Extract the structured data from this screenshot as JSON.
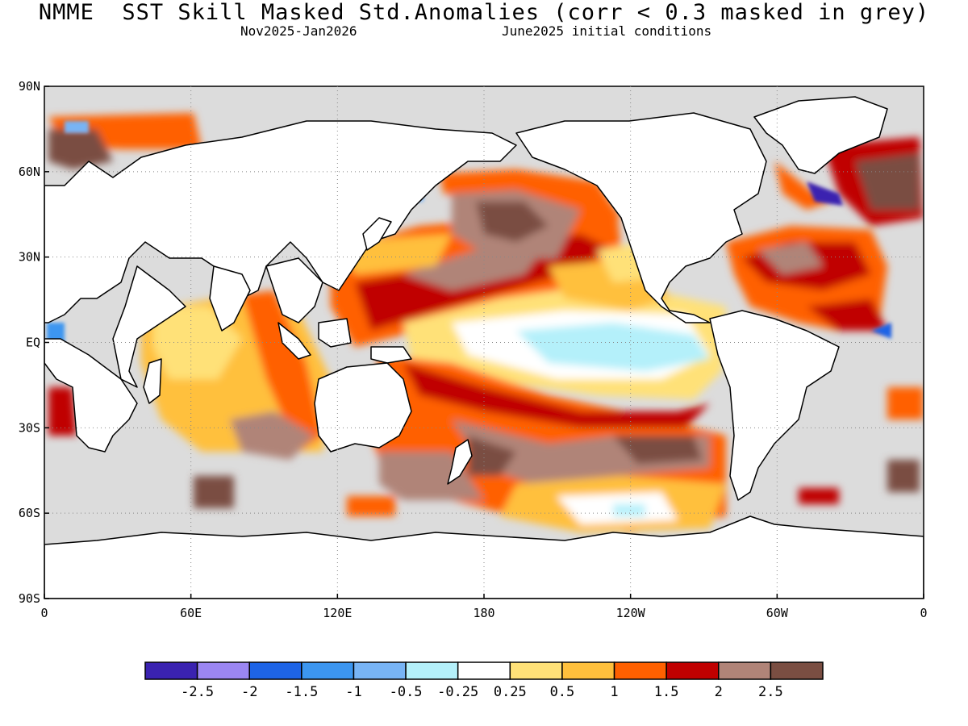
{
  "header": {
    "title": "NMME  SST Skill Masked Std.Anomalies (corr < 0.3 masked in grey)",
    "season": "Nov2025-Jan2026",
    "init": "June2025 initial conditions"
  },
  "map": {
    "land_color": "#ffffff",
    "mask_color": "#dcdcdc",
    "lat_ticks": [
      "90N",
      "60N",
      "30N",
      "EQ",
      "30S",
      "60S",
      "90S"
    ],
    "lon_ticks": [
      "0",
      "60E",
      "120E",
      "180",
      "120W",
      "60W",
      "0"
    ]
  },
  "colorbar": {
    "colors": [
      "#3a22b0",
      "#9b86f2",
      "#1e64e6",
      "#3c96f0",
      "#78b4f5",
      "#b4f0fa",
      "#ffffff",
      "#ffe178",
      "#ffc03c",
      "#ff6000",
      "#c00000",
      "#b08478",
      "#7a4e42"
    ],
    "labels": [
      "-2.5",
      "-2",
      "-1.5",
      "-1",
      "-0.5",
      "-0.25",
      "0.25",
      "0.5",
      "1",
      "1.5",
      "2",
      "2.5"
    ]
  }
}
